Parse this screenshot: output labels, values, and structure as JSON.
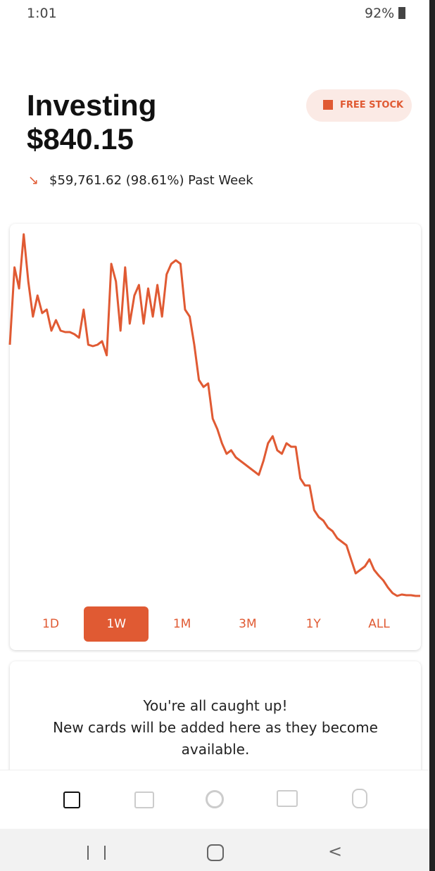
{
  "status_bar": {
    "time": "1:01",
    "battery": "92%"
  },
  "header": {
    "title": "Investing",
    "value": "$840.15",
    "change": "$59,761.62 (98.61%) Past Week",
    "button": "FREE STOCK"
  },
  "chart": {
    "type": "line",
    "color": "#e05a33",
    "values": [
      60602,
      79016,
      73994,
      86884,
      75668,
      67298,
      72320,
      68135,
      68972,
      63950,
      66461,
      63950,
      63615,
      63615,
      63113,
      62276,
      68972,
      60602,
      60267,
      60602,
      61439,
      58091,
      79853,
      75668,
      63950,
      79016,
      65624,
      72320,
      74831,
      65624,
      73994,
      67298,
      74831,
      67298,
      77342,
      79853,
      80690,
      79853,
      68972,
      67298,
      60602,
      52232,
      50558,
      51395,
      43025,
      40514,
      37166,
      34655,
      35492,
      33818,
      32981,
      32144,
      31307,
      30470,
      29633,
      32981,
      37166,
      38840,
      35492,
      34655,
      37166,
      36329,
      36329,
      28796,
      27122,
      27122,
      21263,
      19589,
      18752,
      17078,
      16241,
      14567,
      13730,
      12893,
      9545,
      6197,
      7034,
      7871,
      9545,
      7034,
      5695,
      4523,
      2849,
      1510,
      840,
      1175,
      1007,
      1007,
      840,
      840
    ]
  },
  "periods": {
    "items": [
      "1D",
      "1W",
      "1M",
      "3M",
      "1Y",
      "ALL"
    ],
    "active": 1
  },
  "card": {
    "line1": "You're all caught up!",
    "line2": "New cards will be added here as they become available."
  }
}
